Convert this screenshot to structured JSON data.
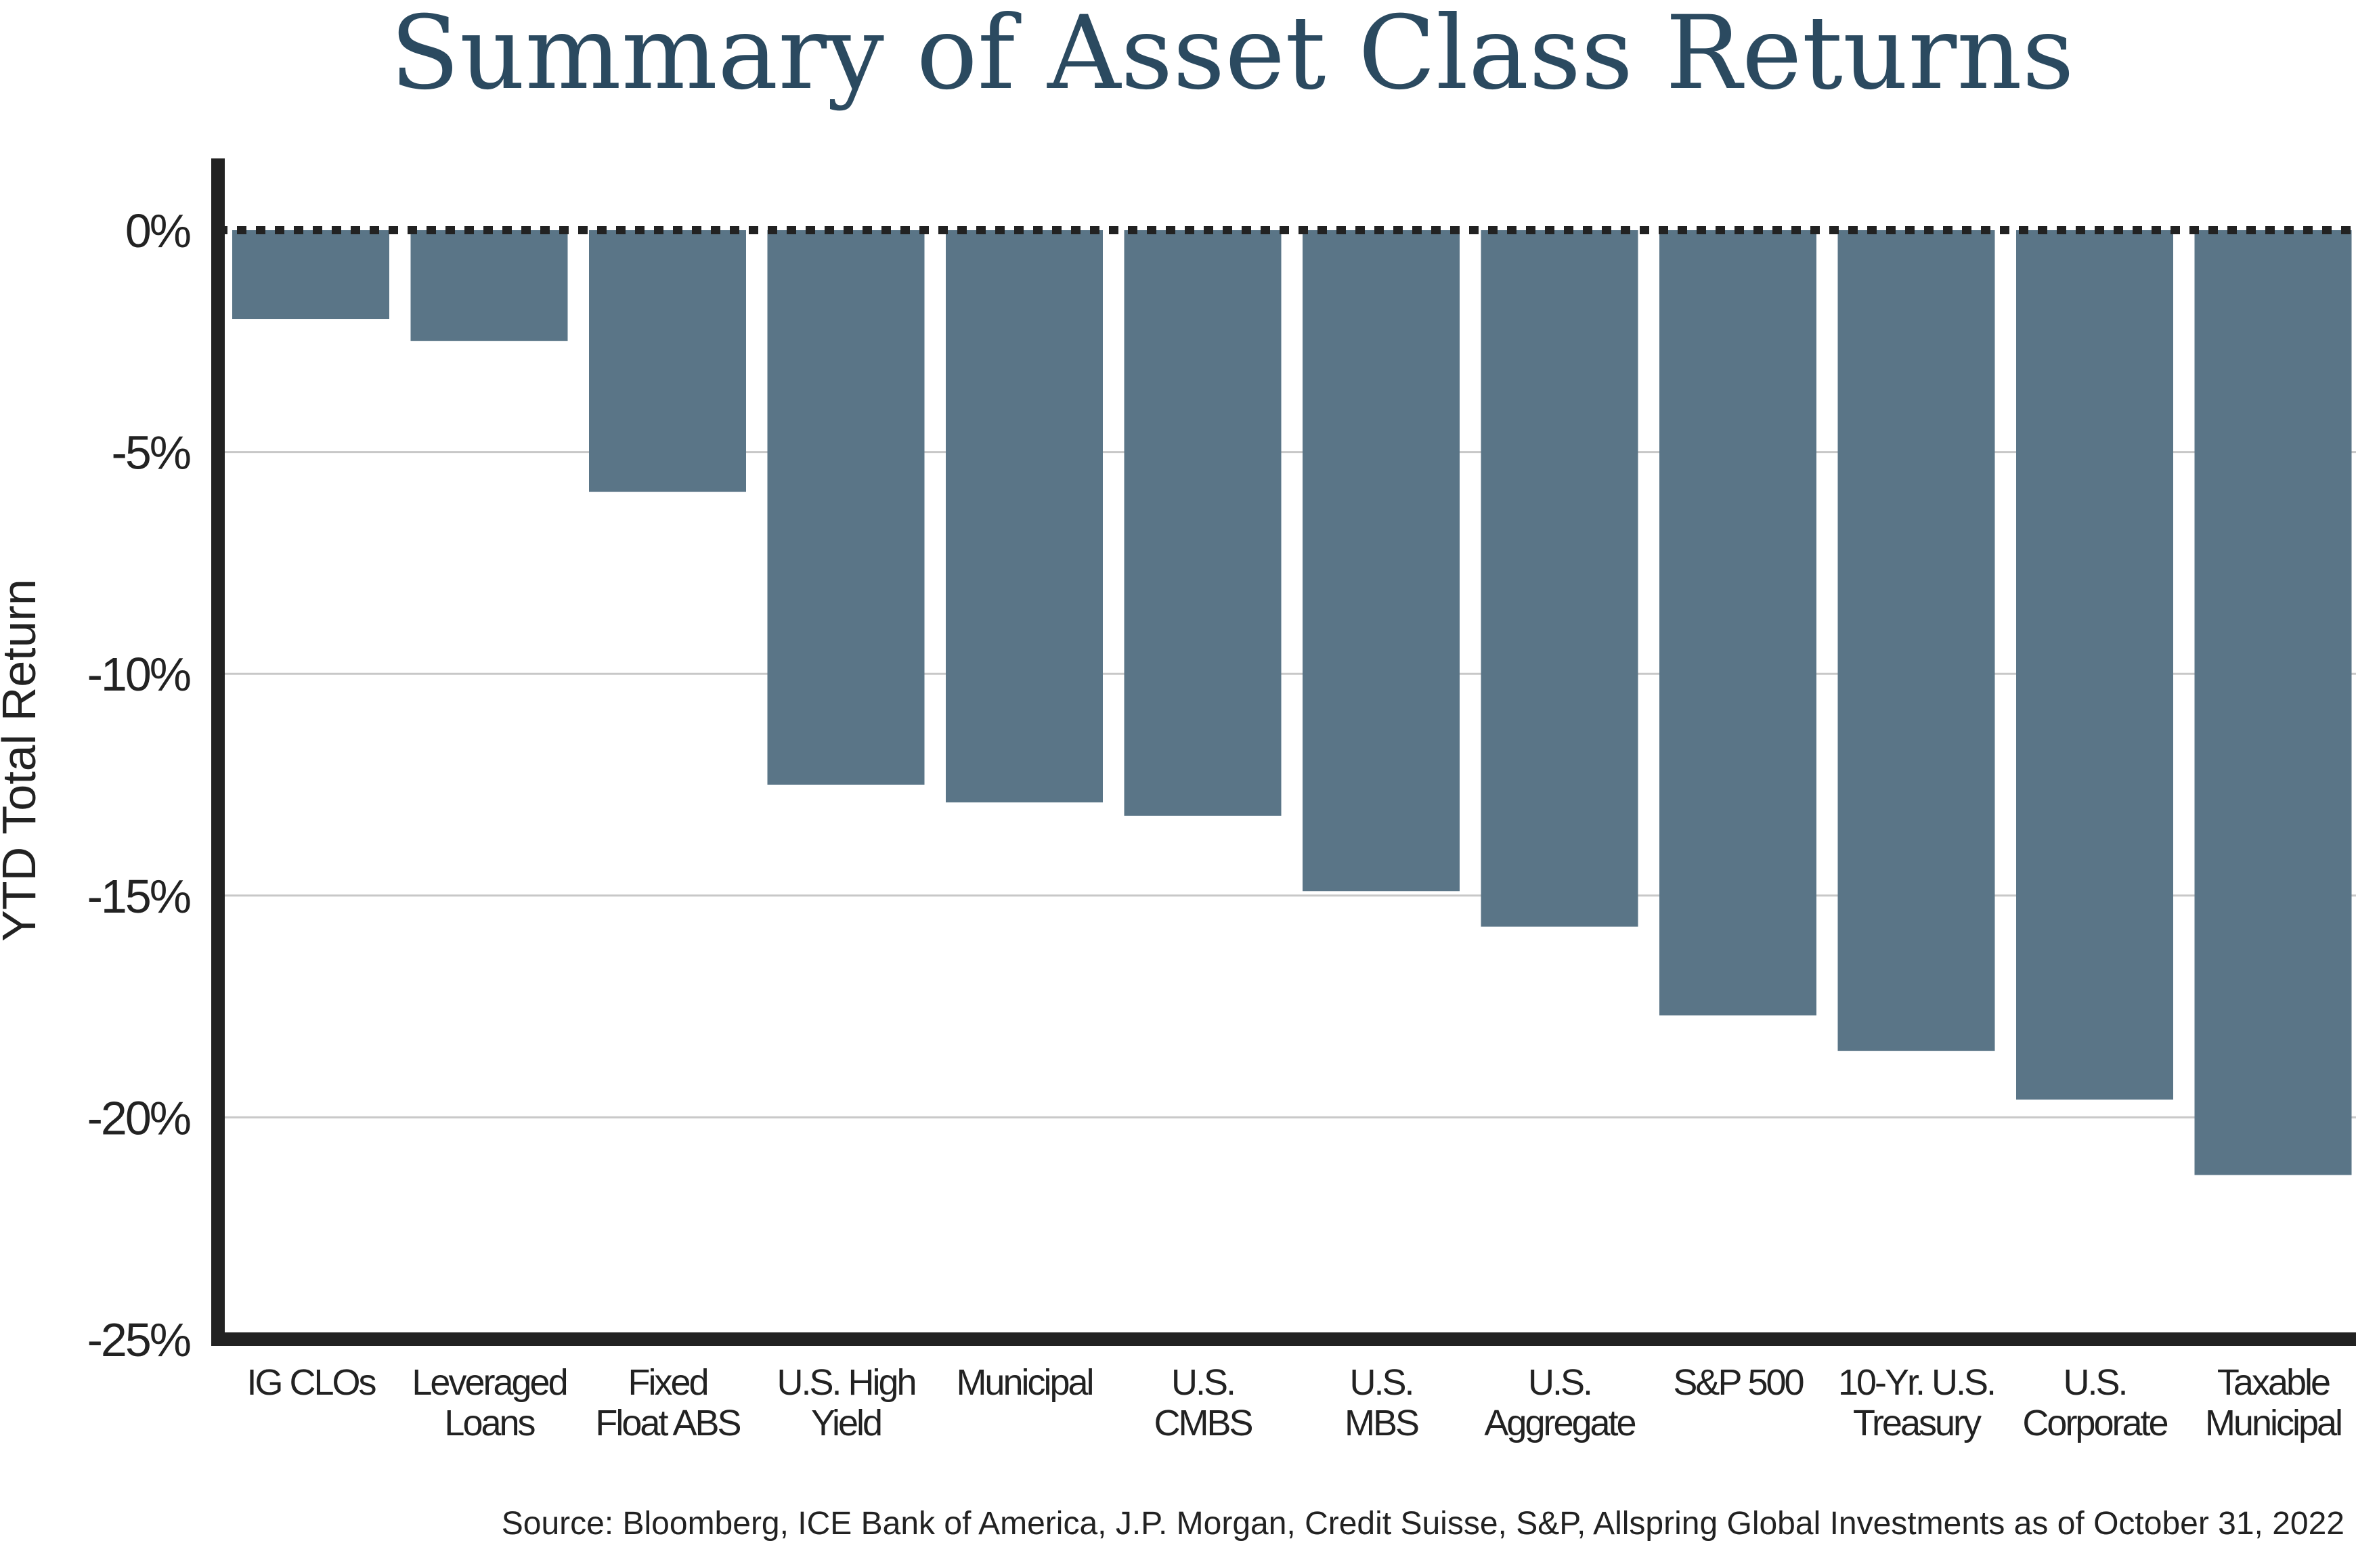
{
  "colors": {
    "title": "#2b4a60",
    "bar": "#5a7587",
    "axis": "#222222",
    "grid": "#c8c8c8",
    "zero_line": "#222222"
  },
  "chart_data": {
    "type": "bar",
    "title": "Summary of Asset Class Returns",
    "xlabel": "",
    "ylabel": "YTD Total Return",
    "ylim": [
      -25,
      0
    ],
    "grid": "horizontal",
    "y_ticks": [
      {
        "value": 0,
        "label": "0%"
      },
      {
        "value": -5,
        "label": "-5%"
      },
      {
        "value": -10,
        "label": "-10%"
      },
      {
        "value": -15,
        "label": "-15%"
      },
      {
        "value": -20,
        "label": "-20%"
      },
      {
        "value": -25,
        "label": "-25%"
      }
    ],
    "categories": [
      [
        "IG CLOs"
      ],
      [
        "Leveraged",
        "Loans"
      ],
      [
        "Fixed",
        "Float ABS"
      ],
      [
        "U.S. High",
        "Yield"
      ],
      [
        "Municipal"
      ],
      [
        "U.S.",
        "CMBS"
      ],
      [
        "U.S.",
        "MBS"
      ],
      [
        "U.S.",
        "Aggregate"
      ],
      [
        "S&P 500"
      ],
      [
        "10-Yr. U.S.",
        "Treasury"
      ],
      [
        "U.S.",
        "Corporate"
      ],
      [
        "Taxable",
        "Municipal"
      ]
    ],
    "values": [
      -2.0,
      -2.5,
      -5.9,
      -12.5,
      -12.9,
      -13.2,
      -14.9,
      -15.7,
      -17.7,
      -18.5,
      -19.6,
      -21.3
    ],
    "source": "Source: Bloomberg, ICE Bank of America, J.P. Morgan, Credit Suisse, S&P, Allspring Global Investments as of October 31, 2022"
  }
}
